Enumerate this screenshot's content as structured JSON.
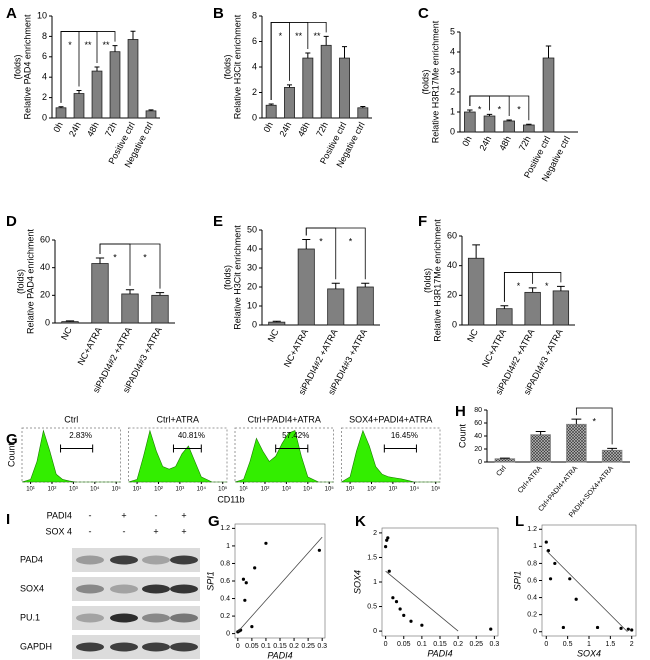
{
  "chart_data": [
    {
      "type": "bar",
      "panel": "A",
      "ylabel": [
        "Relative PAD4 enrichment",
        "(folds)"
      ],
      "categories": [
        "0h",
        "24h",
        "48h",
        "72h",
        "Positive ctrl",
        "Negative ctrl"
      ],
      "values": [
        1.0,
        2.4,
        4.6,
        6.5,
        7.7,
        0.7
      ],
      "errors": [
        0.1,
        0.3,
        0.4,
        0.6,
        0.8,
        0.1
      ],
      "ylim": [
        0,
        10
      ],
      "yticks": [
        0,
        2,
        4,
        6,
        8,
        10
      ],
      "color": "#808080",
      "annotations": [
        {
          "text": "*",
          "between": [
            0,
            1
          ]
        },
        {
          "text": "**",
          "between": [
            0,
            2
          ]
        },
        {
          "text": "**",
          "between": [
            0,
            3
          ]
        }
      ]
    },
    {
      "type": "bar",
      "panel": "B",
      "ylabel": [
        "Relative H3Cit enrichment",
        "(folds)"
      ],
      "categories": [
        "0h",
        "24h",
        "48h",
        "72h",
        "Positive ctrl",
        "Negative ctrl"
      ],
      "values": [
        1.0,
        2.4,
        4.7,
        5.7,
        4.7,
        0.8
      ],
      "errors": [
        0.1,
        0.2,
        0.4,
        0.7,
        0.9,
        0.1
      ],
      "ylim": [
        0,
        8
      ],
      "yticks": [
        0,
        2,
        4,
        6,
        8
      ],
      "color": "#808080",
      "annotations": [
        {
          "text": "*",
          "between": [
            0,
            1
          ]
        },
        {
          "text": "**",
          "between": [
            0,
            2
          ]
        },
        {
          "text": "**",
          "between": [
            0,
            3
          ]
        }
      ]
    },
    {
      "type": "bar",
      "panel": "C",
      "ylabel": [
        "Relative H3R17Me enrichment",
        "(folds)"
      ],
      "categories": [
        "0h",
        "24h",
        "48h",
        "72h",
        "Positive ctrl",
        "Negative ctrl"
      ],
      "values": [
        1.0,
        0.8,
        0.55,
        0.35,
        3.7,
        0
      ],
      "errors": [
        0.1,
        0.08,
        0.05,
        0.04,
        0.6,
        0
      ],
      "ylim": [
        0,
        5
      ],
      "yticks": [
        0,
        1,
        2,
        3,
        4,
        5
      ],
      "color": "#808080",
      "annotations": [
        {
          "text": "*",
          "between": [
            0,
            1
          ]
        },
        {
          "text": "*",
          "between": [
            0,
            2
          ]
        },
        {
          "text": "*",
          "between": [
            0,
            3
          ]
        }
      ]
    },
    {
      "type": "bar",
      "panel": "D",
      "ylabel": [
        "Relative PAD4 enrichment",
        "(folds)"
      ],
      "categories": [
        "NC",
        "NC+ATRA",
        "siPADI4#2 +ATRA",
        "siPADI4#3 +ATRA"
      ],
      "values": [
        1,
        43,
        21,
        20
      ],
      "errors": [
        0.5,
        4,
        3,
        2
      ],
      "ylim": [
        0,
        60
      ],
      "yticks": [
        0,
        20,
        40,
        60
      ],
      "color": "#808080",
      "annotations": [
        {
          "text": "*",
          "between": [
            1,
            2
          ]
        },
        {
          "text": "*",
          "between": [
            1,
            3
          ]
        }
      ]
    },
    {
      "type": "bar",
      "panel": "E",
      "ylabel": [
        "Relative H3Cit enrichment",
        "(folds)"
      ],
      "categories": [
        "NC",
        "NC+ATRA",
        "siPADI4#2 +ATRA",
        "siPADI4#3 +ATRA"
      ],
      "values": [
        1.5,
        40,
        19,
        20
      ],
      "errors": [
        0.5,
        5,
        3,
        2
      ],
      "ylim": [
        0,
        50
      ],
      "yticks": [
        0,
        10,
        20,
        30,
        40,
        50
      ],
      "color": "#808080",
      "annotations": [
        {
          "text": "*",
          "between": [
            1,
            2
          ]
        },
        {
          "text": "*",
          "between": [
            1,
            3
          ]
        }
      ]
    },
    {
      "type": "bar",
      "panel": "F",
      "ylabel": [
        "Relative H3R17Me enrichment",
        "(folds)"
      ],
      "categories": [
        "NC",
        "NC+ATRA",
        "siPADI4#2 +ATRA",
        "siPADI4#3 +ATRA"
      ],
      "values": [
        45,
        11,
        22,
        23
      ],
      "errors": [
        9,
        2,
        3,
        3
      ],
      "ylim": [
        0,
        60
      ],
      "yticks": [
        0,
        20,
        40,
        60
      ],
      "color": "#808080",
      "annotations": [
        {
          "text": "*",
          "between": [
            1,
            2
          ]
        },
        {
          "text": "*",
          "between": [
            1,
            3
          ]
        }
      ]
    },
    {
      "type": "area",
      "panel": "G",
      "xlabel": "CD11b",
      "ylabel": "Count",
      "color": "#33ee00",
      "xlim": [
        0.6,
        5.2
      ],
      "ylim": [
        0,
        1.05
      ],
      "xticks": [
        {
          "value": 1,
          "label": "10¹"
        },
        {
          "value": 2,
          "label": "10²"
        },
        {
          "value": 3,
          "label": "10³"
        },
        {
          "value": 4,
          "label": "10⁴"
        },
        {
          "value": 5,
          "label": "10⁵"
        }
      ],
      "x": [
        0.6,
        1,
        1.3,
        1.6,
        1.9,
        2.2,
        2.5,
        2.8,
        3.1,
        3.4,
        3.7,
        4,
        4.5,
        5.2
      ],
      "panels": [
        {
          "title": "Ctrl",
          "label": "2.83%",
          "gate": [
            2.4,
            3.9
          ],
          "values": [
            0,
            0.05,
            0.4,
            1,
            0.6,
            0.15,
            0.05,
            0.02,
            0,
            0,
            0,
            0,
            0,
            0
          ]
        },
        {
          "title": "Ctrl+ATRA",
          "label": "40.81%",
          "gate": [
            2.7,
            4.0
          ],
          "values": [
            0,
            0.05,
            0.5,
            1,
            0.6,
            0.3,
            0.25,
            0.3,
            0.55,
            0.7,
            0.4,
            0.1,
            0,
            0
          ]
        },
        {
          "title": "Ctrl+PADI4+ATRA",
          "label": "57.42%",
          "gate": [
            2.5,
            4.0
          ],
          "values": [
            0,
            0.05,
            0.4,
            0.85,
            0.6,
            0.4,
            0.5,
            0.75,
            0.95,
            1,
            0.5,
            0.1,
            0,
            0
          ]
        },
        {
          "title": "SOX4+PADI4+ATRA",
          "label": "16.45%",
          "gate": [
            2.6,
            4.1
          ],
          "values": [
            0,
            0.1,
            0.6,
            1,
            0.7,
            0.3,
            0.15,
            0.1,
            0.08,
            0.06,
            0.03,
            0,
            0,
            0
          ]
        }
      ]
    },
    {
      "type": "bar",
      "panel": "H",
      "ylabel": [
        "Count"
      ],
      "categories": [
        "Ctrl",
        "Ctrl+ATRA",
        "Ctrl+PADI4+ATRA",
        "PADI4+SOX4+ATRA"
      ],
      "values": [
        5,
        42,
        58,
        18
      ],
      "errors": [
        1,
        5,
        8,
        3
      ],
      "ylim": [
        0,
        80
      ],
      "yticks": [
        0,
        20,
        40,
        60,
        80
      ],
      "color": "#808080",
      "hatched": true,
      "annotations": [
        {
          "text": "*",
          "between": [
            2,
            3
          ]
        }
      ]
    },
    {
      "type": "scatter",
      "panel": "G",
      "xlabel": "PADI4",
      "ylabel": "SPI1",
      "color": "#000000",
      "xlim": [
        -0.01,
        0.31
      ],
      "ylim": [
        -0.05,
        1.25
      ],
      "xticks": [
        0,
        0.05,
        0.1,
        0.15,
        0.2,
        0.25,
        0.3
      ],
      "yticks": [
        0,
        0.2,
        0.4,
        0.6,
        0.8,
        1,
        1.2
      ],
      "x": [
        0,
        0.005,
        0.01,
        0.02,
        0.025,
        0.03,
        0.05,
        0.06,
        0.1,
        0.29
      ],
      "values": [
        0.02,
        0.03,
        0.04,
        0.62,
        0.38,
        0.58,
        0.08,
        0.75,
        1.03,
        0.95
      ],
      "fit": {
        "x": [
          0,
          0.3
        ],
        "values": [
          0.02,
          1.1
        ]
      }
    },
    {
      "type": "scatter",
      "panel": "K",
      "xlabel": "PADI4",
      "ylabel": "SOX4",
      "color": "#000000",
      "xlim": [
        -0.01,
        0.31
      ],
      "ylim": [
        -0.1,
        2.1
      ],
      "xticks": [
        0,
        0.05,
        0.1,
        0.15,
        0.2,
        0.25,
        0.3
      ],
      "yticks": [
        0,
        0.5,
        1,
        1.5,
        2
      ],
      "x": [
        0,
        0.003,
        0.006,
        0.01,
        0.02,
        0.03,
        0.04,
        0.05,
        0.07,
        0.1,
        0.29
      ],
      "values": [
        1.72,
        1.85,
        1.9,
        1.22,
        0.68,
        0.6,
        0.45,
        0.32,
        0.2,
        0.12,
        0.04
      ],
      "fit": {
        "x": [
          0,
          0.2
        ],
        "values": [
          1.22,
          0
        ]
      }
    },
    {
      "type": "scatter",
      "panel": "L",
      "xlabel": "SOX4",
      "ylabel": "SPI1",
      "color": "#000000",
      "xlim": [
        -0.1,
        2.1
      ],
      "ylim": [
        -0.05,
        1.25
      ],
      "xticks": [
        0,
        0.5,
        1,
        1.5,
        2
      ],
      "yticks": [
        0,
        0.2,
        0.4,
        0.6,
        0.8,
        1,
        1.2
      ],
      "x": [
        0,
        0.05,
        0.1,
        0.2,
        0.4,
        0.55,
        0.7,
        1.2,
        1.75,
        1.92,
        2.0
      ],
      "values": [
        1.05,
        0.95,
        0.62,
        0.8,
        0.05,
        0.62,
        0.38,
        0.05,
        0.04,
        0.03,
        0.02
      ],
      "fit": {
        "x": [
          0,
          1.9
        ],
        "values": [
          0.95,
          0
        ]
      }
    }
  ],
  "blot": {
    "panel": "I",
    "conditions": [
      {
        "label": "PADI4",
        "signs": [
          "-",
          "+",
          "-",
          "+"
        ]
      },
      {
        "label": "SOX 4",
        "signs": [
          "-",
          "-",
          "+",
          "+"
        ]
      }
    ],
    "bands": [
      "PAD4",
      "SOX4",
      "PU.1",
      "GAPDH"
    ]
  }
}
